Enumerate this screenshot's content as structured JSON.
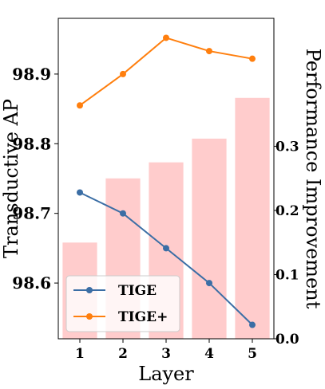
{
  "chart_data": {
    "type": "bar+line",
    "xlabel": "Layer",
    "ylabel_left": "Transductive AP",
    "ylabel_right": "Performance Improvement",
    "categories": [
      1,
      2,
      3,
      4,
      5
    ],
    "bars": {
      "axis": "right",
      "color": "#ffcccc",
      "values": [
        0.15,
        0.25,
        0.275,
        0.312,
        0.3755
      ]
    },
    "series": [
      {
        "name": "TIGE",
        "axis": "left",
        "color": "#3b6ea5",
        "values": [
          98.73,
          98.7,
          98.65,
          98.6,
          98.54
        ]
      },
      {
        "name": "TIGE+",
        "axis": "left",
        "color": "#ff7f0e",
        "values": [
          98.855,
          98.9,
          98.952,
          98.933,
          98.922
        ]
      }
    ],
    "ylim_left": [
      98.52,
      98.98
    ],
    "ylim_right": [
      0.0,
      0.4995
    ],
    "yticks_left": [
      "98.6",
      "98.7",
      "98.8",
      "98.9"
    ],
    "yticks_right": [
      "0.0",
      "0.1",
      "0.2",
      "0.3"
    ],
    "xticks": [
      "1",
      "2",
      "3",
      "4",
      "5"
    ],
    "legend_position": "lower-left",
    "grid": false
  }
}
